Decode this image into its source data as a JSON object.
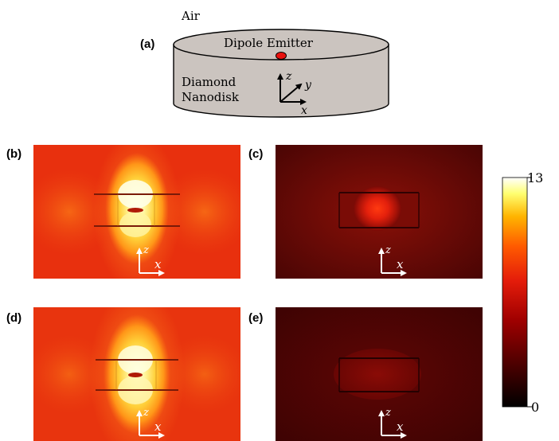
{
  "schematic": {
    "panel_label": "(a)",
    "medium_label": "Air",
    "source_label": "Dipole Emitter",
    "material_line1": "Diamond",
    "material_line2": "Nanodisk",
    "axis_z": "z",
    "axis_y": "y",
    "axis_x": "x",
    "disk_color": "#cbc4bf",
    "emitter_color": "#e8120f"
  },
  "panels": [
    {
      "id": "b",
      "label": "(b)",
      "axis_z": "z",
      "axis_x": "x",
      "variant": "strong-vertical"
    },
    {
      "id": "c",
      "label": "(c)",
      "axis_z": "z",
      "axis_x": "x",
      "variant": "weak-inside"
    },
    {
      "id": "d",
      "label": "(d)",
      "axis_z": "z",
      "axis_x": "x",
      "variant": "strong-vertical"
    },
    {
      "id": "e",
      "label": "(e)",
      "axis_z": "z",
      "axis_x": "x",
      "variant": "dark-inside"
    }
  ],
  "colorbar": {
    "max_label": "13",
    "min_label": "0",
    "colormap": "hot",
    "stops": [
      "#000000",
      "#5c0000",
      "#b30000",
      "#e8200c",
      "#ff6a00",
      "#ffc000",
      "#ffff80",
      "#ffffff"
    ]
  }
}
